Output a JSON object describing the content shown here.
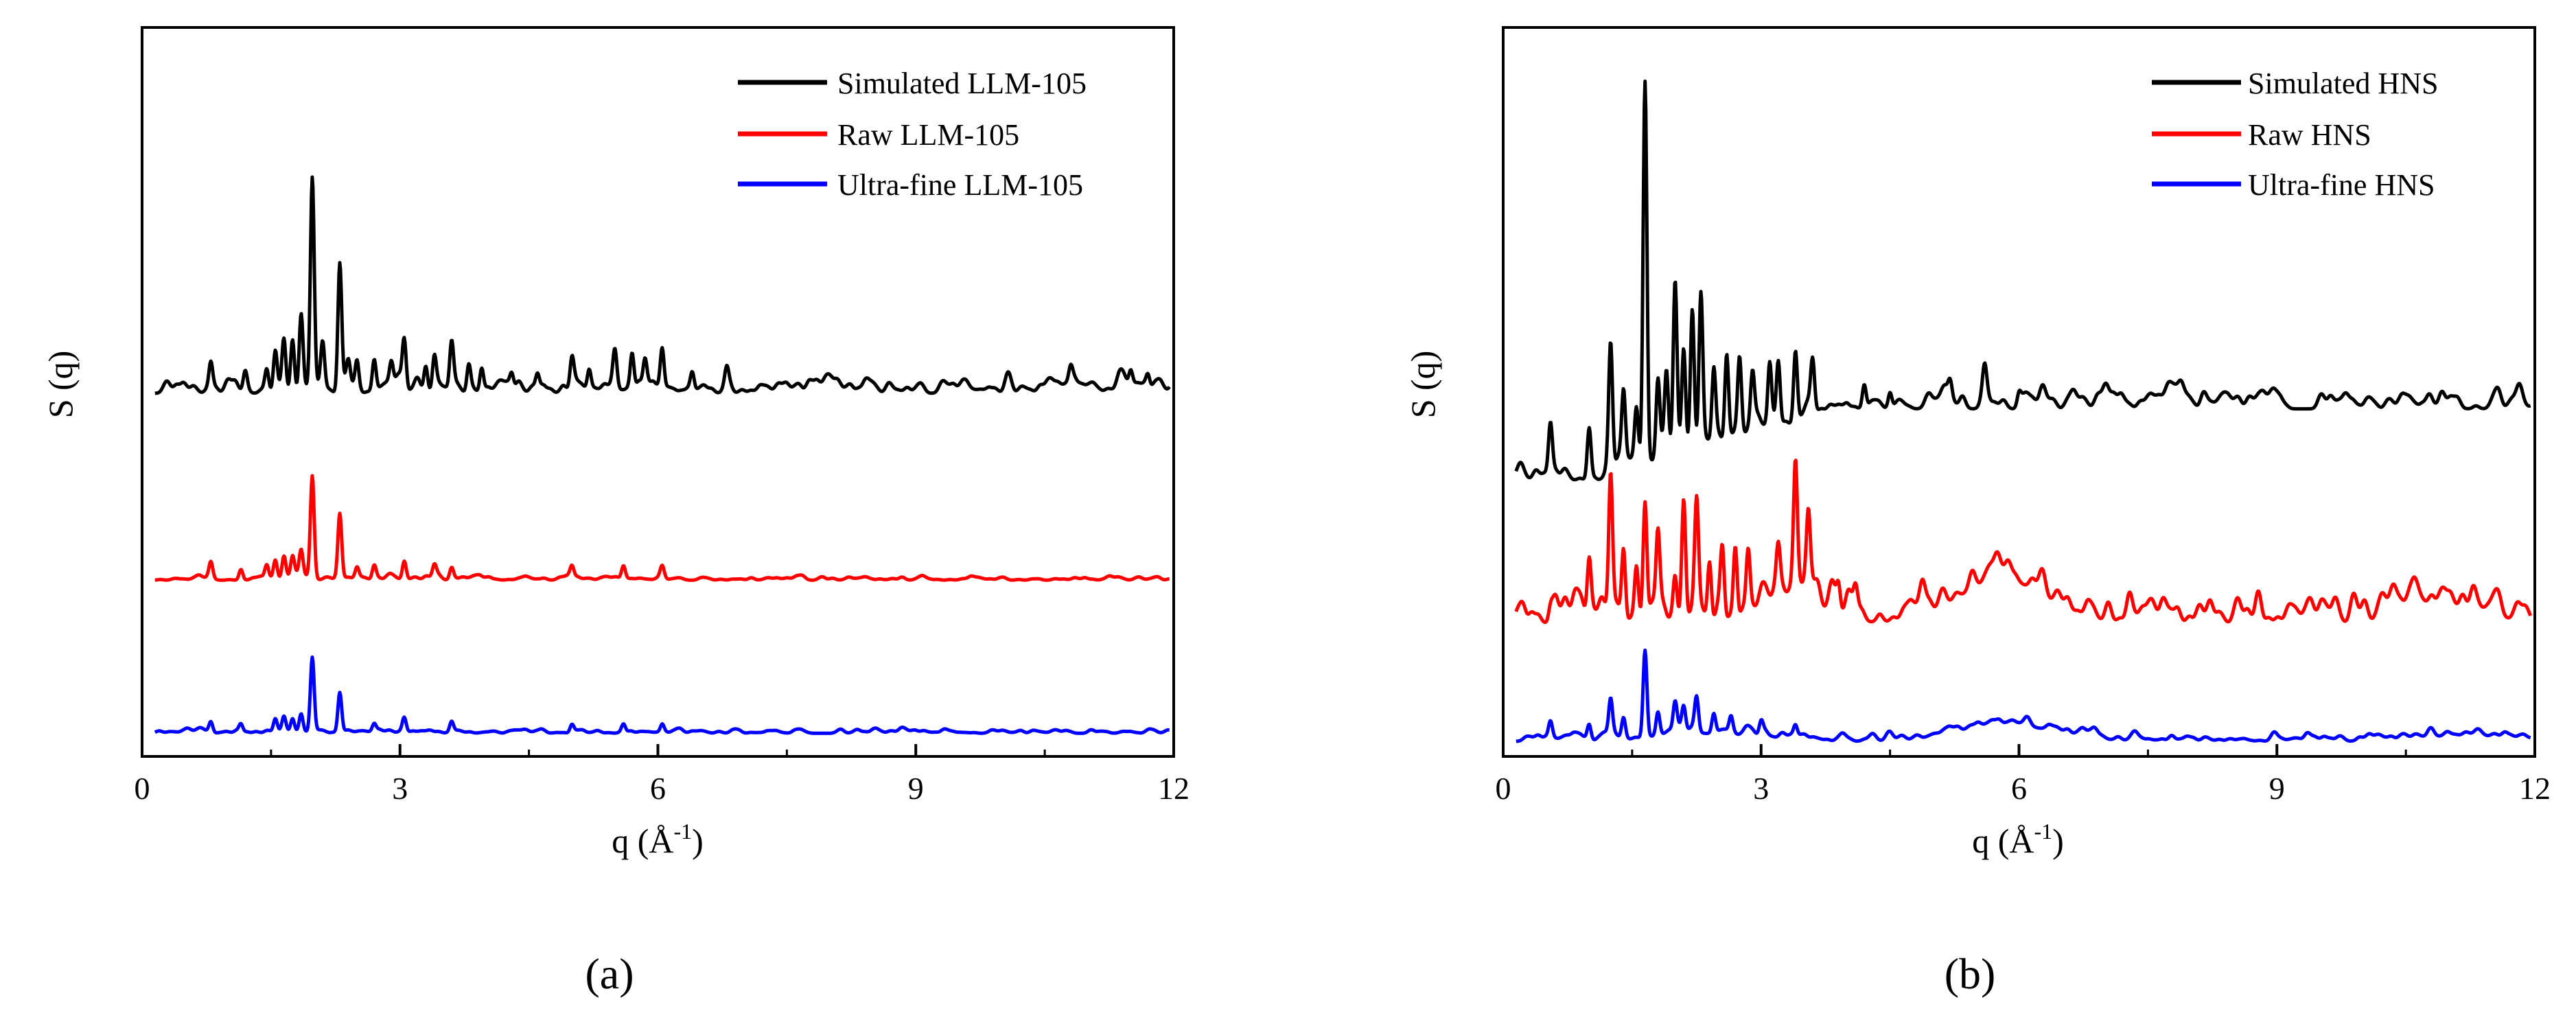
{
  "chart_data": [
    {
      "type": "line",
      "panel_label": "(a)",
      "xlabel": "q (Å",
      "xlabel_sup": "-1",
      "xlabel_end": ")",
      "ylabel": "S (q)",
      "xlim": [
        0,
        12
      ],
      "xticks": [
        0,
        3,
        6,
        9,
        12
      ],
      "xtick_labels": [
        "0",
        "3",
        "6",
        "9",
        "12"
      ],
      "y_ticks_labeled": false,
      "legend_position": "top-right",
      "series": [
        {
          "name": "Simulated LLM-105",
          "color": "#000000",
          "baseline": 0.1,
          "q_start": 0.15,
          "noise": 0.12,
          "peaks": [
            [
              0.8,
              0.1
            ],
            [
              1.2,
              0.06
            ],
            [
              1.45,
              0.08
            ],
            [
              1.55,
              0.15
            ],
            [
              1.65,
              0.18
            ],
            [
              1.75,
              0.2
            ],
            [
              1.85,
              0.28
            ],
            [
              1.98,
              0.76
            ],
            [
              2.1,
              0.15
            ],
            [
              2.3,
              0.48
            ],
            [
              2.4,
              0.08
            ],
            [
              2.5,
              0.1
            ],
            [
              2.7,
              0.12
            ],
            [
              2.9,
              0.09
            ],
            [
              3.05,
              0.18
            ],
            [
              3.3,
              0.1
            ],
            [
              3.4,
              0.12
            ],
            [
              3.6,
              0.16
            ],
            [
              3.8,
              0.1
            ],
            [
              3.95,
              0.09
            ],
            [
              4.3,
              0.06
            ],
            [
              4.6,
              0.06
            ],
            [
              5.0,
              0.1
            ],
            [
              5.2,
              0.08
            ],
            [
              5.5,
              0.12
            ],
            [
              5.7,
              0.14
            ],
            [
              5.85,
              0.09
            ],
            [
              6.05,
              0.15
            ],
            [
              6.4,
              0.07
            ],
            [
              6.8,
              0.05
            ],
            [
              10.8,
              0.05
            ],
            [
              11.5,
              0.06
            ],
            [
              11.7,
              0.05
            ]
          ]
        },
        {
          "name": "Raw LLM-105",
          "color": "#ff0000",
          "baseline": 0.03,
          "q_start": 0.15,
          "noise": 0.03,
          "peaks": [
            [
              0.8,
              0.06
            ],
            [
              1.15,
              0.04
            ],
            [
              1.45,
              0.05
            ],
            [
              1.55,
              0.07
            ],
            [
              1.65,
              0.08
            ],
            [
              1.75,
              0.08
            ],
            [
              1.85,
              0.1
            ],
            [
              1.98,
              0.38
            ],
            [
              2.3,
              0.24
            ],
            [
              2.5,
              0.04
            ],
            [
              2.7,
              0.05
            ],
            [
              3.05,
              0.07
            ],
            [
              3.4,
              0.04
            ],
            [
              3.6,
              0.04
            ],
            [
              5.0,
              0.04
            ],
            [
              5.6,
              0.05
            ],
            [
              6.05,
              0.04
            ]
          ]
        },
        {
          "name": "Ultra-fine LLM-105",
          "color": "#0000ff",
          "baseline": 0.025,
          "q_start": 0.15,
          "noise": 0.03,
          "peaks": [
            [
              0.8,
              0.04
            ],
            [
              1.15,
              0.03
            ],
            [
              1.55,
              0.05
            ],
            [
              1.65,
              0.05
            ],
            [
              1.75,
              0.05
            ],
            [
              1.85,
              0.07
            ],
            [
              1.98,
              0.28
            ],
            [
              2.3,
              0.15
            ],
            [
              2.7,
              0.03
            ],
            [
              3.05,
              0.05
            ],
            [
              3.6,
              0.04
            ],
            [
              5.0,
              0.03
            ],
            [
              5.6,
              0.03
            ],
            [
              6.05,
              0.03
            ]
          ]
        }
      ]
    },
    {
      "type": "line",
      "panel_label": "(b)",
      "xlabel": "q (Å",
      "xlabel_sup": "-1",
      "xlabel_end": ")",
      "ylabel": "S (q)",
      "xlim": [
        0,
        12
      ],
      "xticks": [
        0,
        3,
        6,
        9,
        12
      ],
      "xtick_labels": [
        "0",
        "3",
        "6",
        "9",
        "12"
      ],
      "y_ticks_labeled": false,
      "legend_position": "top-right",
      "series": [
        {
          "name": "Simulated HNS",
          "color": "#000000",
          "baseline": 0.0,
          "q_start": 0.15,
          "noise": 0.1,
          "peaks": [
            [
              0.55,
              0.12
            ],
            [
              1.0,
              0.13
            ],
            [
              1.25,
              0.3
            ],
            [
              1.4,
              0.18
            ],
            [
              1.55,
              0.14
            ],
            [
              1.65,
              0.96
            ],
            [
              1.8,
              0.2
            ],
            [
              1.9,
              0.18
            ],
            [
              2.0,
              0.42
            ],
            [
              2.1,
              0.25
            ],
            [
              2.2,
              0.35
            ],
            [
              2.3,
              0.38
            ],
            [
              2.45,
              0.18
            ],
            [
              2.6,
              0.22
            ],
            [
              2.75,
              0.18
            ],
            [
              2.9,
              0.12
            ],
            [
              3.1,
              0.15
            ],
            [
              3.2,
              0.16
            ],
            [
              3.4,
              0.18
            ],
            [
              3.6,
              0.12
            ],
            [
              4.2,
              0.06
            ],
            [
              4.5,
              0.04
            ],
            [
              5.2,
              0.04
            ],
            [
              5.6,
              0.05
            ],
            [
              6.0,
              0.03
            ]
          ],
          "rise_to": 0.18,
          "rise_start": 1.1,
          "rise_end": 4.0
        },
        {
          "name": "Raw HNS",
          "color": "#ff0000",
          "baseline": 0.0,
          "q_start": 0.15,
          "noise": 0.15,
          "peaks": [
            [
              0.55,
              0.03
            ],
            [
              1.0,
              0.13
            ],
            [
              1.25,
              0.34
            ],
            [
              1.4,
              0.18
            ],
            [
              1.55,
              0.12
            ],
            [
              1.65,
              0.3
            ],
            [
              1.8,
              0.18
            ],
            [
              2.0,
              0.1
            ],
            [
              2.1,
              0.28
            ],
            [
              2.25,
              0.25
            ],
            [
              2.4,
              0.15
            ],
            [
              2.55,
              0.16
            ],
            [
              2.7,
              0.18
            ],
            [
              2.85,
              0.14
            ],
            [
              3.2,
              0.1
            ],
            [
              3.4,
              0.3
            ],
            [
              3.55,
              0.15
            ],
            [
              3.9,
              0.06
            ],
            [
              4.1,
              0.04
            ]
          ],
          "broad": [
            [
              5.8,
              1.0,
              0.11
            ],
            [
              11.0,
              0.9,
              0.04
            ],
            [
              3.4,
              0.7,
              0.05
            ]
          ]
        },
        {
          "name": "Ultra-fine HNS",
          "color": "#0000ff",
          "baseline": 0.0,
          "q_start": 0.15,
          "noise": 0.04,
          "peaks": [
            [
              0.55,
              0.04
            ],
            [
              1.0,
              0.04
            ],
            [
              1.25,
              0.09
            ],
            [
              1.4,
              0.05
            ],
            [
              1.65,
              0.22
            ],
            [
              1.8,
              0.06
            ],
            [
              2.0,
              0.07
            ],
            [
              2.1,
              0.06
            ],
            [
              2.25,
              0.08
            ],
            [
              2.45,
              0.05
            ],
            [
              2.65,
              0.04
            ],
            [
              3.0,
              0.03
            ],
            [
              3.4,
              0.03
            ]
          ],
          "broad": [
            [
              5.9,
              1.1,
              0.04
            ],
            [
              11.2,
              1.0,
              0.015
            ],
            [
              2.3,
              1.0,
              0.02
            ]
          ]
        }
      ]
    }
  ]
}
